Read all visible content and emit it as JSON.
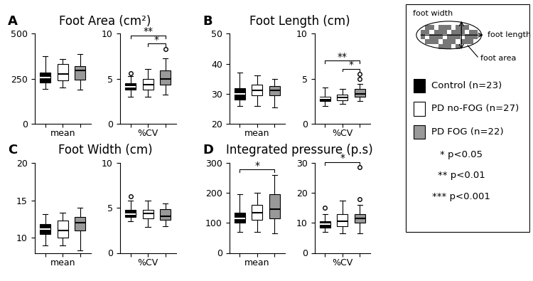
{
  "chart_data": {
    "type": "box",
    "groups": [
      {
        "name": "Control (n=23)",
        "color": "#000000"
      },
      {
        "name": "PD no-FOG (n=27)",
        "color": "#ffffff"
      },
      {
        "name": "PD FOG (n=22)",
        "color": "#999999"
      }
    ],
    "significance_key": [
      "* p<0.05",
      "** p<0.01",
      "*** p<0.001"
    ],
    "schematic_labels": {
      "width": "foot width",
      "length": "foot length",
      "area": "foot area"
    },
    "panels": [
      {
        "letter": "A",
        "title": "Foot Area (cm²)",
        "charts": [
          {
            "xlabel": "mean",
            "ylim": [
              0,
              500
            ],
            "yticks": [
              0,
              250,
              500
            ],
            "significance": [],
            "boxes": [
              {
                "whislo": 195,
                "q1": 230,
                "med": 255,
                "q3": 285,
                "whishi": 375,
                "fliers": []
              },
              {
                "whislo": 200,
                "q1": 240,
                "med": 275,
                "q3": 330,
                "whishi": 360,
                "fliers": []
              },
              {
                "whislo": 190,
                "q1": 245,
                "med": 295,
                "q3": 320,
                "whishi": 385,
                "fliers": []
              }
            ]
          },
          {
            "xlabel": "%CV",
            "ylim": [
              0,
              10
            ],
            "yticks": [
              0,
              5,
              10
            ],
            "significance": [
              {
                "between": [
                  1,
                  2
                ],
                "text": "*"
              },
              {
                "between": [
                  0,
                  2
                ],
                "text": "**"
              }
            ],
            "boxes": [
              {
                "whislo": 3.0,
                "q1": 3.8,
                "med": 4.1,
                "q3": 4.5,
                "whishi": 5.3,
                "fliers": [
                  5.6
                ]
              },
              {
                "whislo": 3.0,
                "q1": 3.8,
                "med": 4.3,
                "q3": 5.0,
                "whishi": 6.1,
                "fliers": []
              },
              {
                "whislo": 3.2,
                "q1": 4.3,
                "med": 5.0,
                "q3": 5.9,
                "whishi": 7.3,
                "fliers": [
                  8.3
                ]
              }
            ]
          }
        ]
      },
      {
        "letter": "B",
        "title": "Foot Length (cm)",
        "charts": [
          {
            "xlabel": "mean",
            "ylim": [
              20,
              50
            ],
            "yticks": [
              20,
              30,
              40,
              50
            ],
            "significance": [],
            "boxes": [
              {
                "whislo": 26,
                "q1": 28,
                "med": 30,
                "q3": 31.8,
                "whishi": 37,
                "fliers": []
              },
              {
                "whislo": 26,
                "q1": 29.5,
                "med": 31,
                "q3": 33,
                "whishi": 36,
                "fliers": []
              },
              {
                "whislo": 25.5,
                "q1": 29.5,
                "med": 31,
                "q3": 32.5,
                "whishi": 35,
                "fliers": []
              }
            ]
          },
          {
            "xlabel": "%CV",
            "ylim": [
              0,
              10
            ],
            "yticks": [
              0,
              5,
              10
            ],
            "significance": [
              {
                "between": [
                  1,
                  2
                ],
                "text": "*"
              },
              {
                "between": [
                  0,
                  2
                ],
                "text": "**"
              }
            ],
            "boxes": [
              {
                "whislo": 2.0,
                "q1": 2.5,
                "med": 2.8,
                "q3": 3.0,
                "whishi": 4.0,
                "fliers": []
              },
              {
                "whislo": 2.2,
                "q1": 2.6,
                "med": 2.9,
                "q3": 3.2,
                "whishi": 3.9,
                "fliers": []
              },
              {
                "whislo": 2.5,
                "q1": 3.0,
                "med": 3.3,
                "q3": 3.9,
                "whishi": 4.4,
                "fliers": [
                  5.0,
                  5.5
                ]
              }
            ]
          }
        ]
      },
      {
        "letter": "C",
        "title": "Foot Width (cm)",
        "charts": [
          {
            "xlabel": "mean",
            "ylim": [
              8,
              20
            ],
            "yticks": [
              10,
              15,
              20
            ],
            "significance": [],
            "boxes": [
              {
                "whislo": 9,
                "q1": 10.5,
                "med": 11.2,
                "q3": 11.8,
                "whishi": 13.2,
                "fliers": []
              },
              {
                "whislo": 9,
                "q1": 10,
                "med": 11,
                "q3": 12.3,
                "whishi": 13.4,
                "fliers": []
              },
              {
                "whislo": 8.3,
                "q1": 11,
                "med": 12,
                "q3": 12.8,
                "whishi": 14,
                "fliers": []
              }
            ]
          },
          {
            "xlabel": "%CV",
            "ylim": [
              0,
              10
            ],
            "yticks": [
              0,
              5,
              10
            ],
            "significance": [],
            "boxes": [
              {
                "whislo": 3.5,
                "q1": 4.0,
                "med": 4.3,
                "q3": 4.8,
                "whishi": 5.8,
                "fliers": [
                  6.3
                ]
              },
              {
                "whislo": 2.9,
                "q1": 3.8,
                "med": 4.4,
                "q3": 4.8,
                "whishi": 5.8,
                "fliers": []
              },
              {
                "whislo": 3.0,
                "q1": 3.7,
                "med": 4.1,
                "q3": 4.9,
                "whishi": 5.5,
                "fliers": []
              }
            ]
          }
        ]
      },
      {
        "letter": "D",
        "title": "Integrated pressure (p.s)",
        "charts": [
          {
            "xlabel": "mean",
            "ylim": [
              0,
              300
            ],
            "yticks": [
              0,
              100,
              200,
              300
            ],
            "significance": [
              {
                "between": [
                  0,
                  2
                ],
                "text": "*"
              }
            ],
            "boxes": [
              {
                "whislo": 70,
                "q1": 100,
                "med": 115,
                "q3": 135,
                "whishi": 195,
                "fliers": []
              },
              {
                "whislo": 70,
                "q1": 110,
                "med": 135,
                "q3": 160,
                "whishi": 200,
                "fliers": []
              },
              {
                "whislo": 65,
                "q1": 115,
                "med": 145,
                "q3": 195,
                "whishi": 260,
                "fliers": []
              }
            ]
          },
          {
            "xlabel": "%CV",
            "ylim": [
              0,
              30
            ],
            "yticks": [
              0,
              10,
              20,
              30
            ],
            "significance": [
              {
                "between": [
                  0,
                  2
                ],
                "text": "*"
              }
            ],
            "boxes": [
              {
                "whislo": 7,
                "q1": 8.5,
                "med": 9.5,
                "q3": 10.5,
                "whishi": 13,
                "fliers": [
                  15
                ]
              },
              {
                "whislo": 6.5,
                "q1": 9,
                "med": 10.5,
                "q3": 13,
                "whishi": 17.5,
                "fliers": []
              },
              {
                "whislo": 6.5,
                "q1": 10,
                "med": 11.5,
                "q3": 13,
                "whishi": 16,
                "fliers": [
                  18,
                  28.5
                ]
              }
            ]
          }
        ]
      }
    ]
  }
}
